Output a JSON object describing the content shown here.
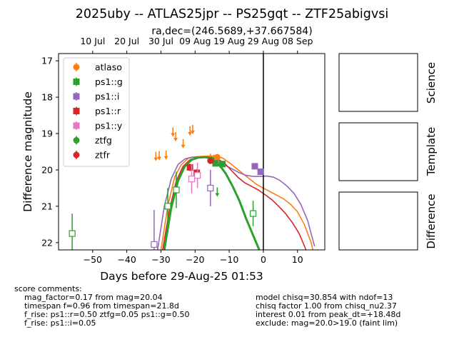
{
  "title": "2025uby -- ATLAS25jpr -- PS25gqt -- ZTF25abigvsi",
  "subtitle": "ra,dec=(246.5689,+37.667584)",
  "panels": [
    {
      "label": "Science"
    },
    {
      "label": "Template"
    },
    {
      "label": "Difference"
    }
  ],
  "comments_left": [
    "score comments:",
    "mag_factor=0.17 from mag=20.04",
    "timespan f=0.96 from timespan=21.8d",
    "f_rise: ps1::r=0.50 ztfg=0.05 ps1::g=0.50",
    "f_rise: ps1::i=0.05"
  ],
  "comments_right": [
    "model chisq=30.854 with ndof=13",
    "chisq factor 1.00 from chisq_nu2.37",
    "interest 0.01 from peak_dt=+18.48d",
    "exclude: mag=20.0>19.0 (faint lim)"
  ],
  "chart_data": {
    "type": "scatter",
    "xlabel": "Days before 29-Aug-25 01:53",
    "ylabel": "Difference magnitude",
    "xlim": [
      -60,
      18
    ],
    "ylim": [
      22.2,
      16.8
    ],
    "y_inverted": true,
    "x_ticks": [
      -50,
      -40,
      -30,
      -20,
      -10,
      0,
      10
    ],
    "y_ticks": [
      17,
      18,
      19,
      20,
      21,
      22
    ],
    "top_axis_ticks": [
      {
        "x": -50.0,
        "label": "10 Jul"
      },
      {
        "x": -40.0,
        "label": "20 Jul"
      },
      {
        "x": -30.0,
        "label": "30 Jul"
      },
      {
        "x": -20.0,
        "label": "09 Aug"
      },
      {
        "x": -10.0,
        "label": "19 Aug"
      },
      {
        "x": 0.0,
        "label": "29 Aug"
      },
      {
        "x": 10.0,
        "label": "08 Sep"
      }
    ],
    "vline_x": 0,
    "grid": false,
    "legend_position": "top-left",
    "series": [
      {
        "name": "atlaso",
        "color": "#ff7f0e",
        "marker": "circle",
        "points": [
          {
            "x": -13.5,
            "y": 19.65,
            "err": 0.06
          }
        ],
        "upper_limits": [
          {
            "x": -31.5,
            "y": 19.62
          },
          {
            "x": -30.5,
            "y": 19.6
          },
          {
            "x": -28.5,
            "y": 19.58
          },
          {
            "x": -26.5,
            "y": 18.95
          },
          {
            "x": -25.7,
            "y": 19.08
          },
          {
            "x": -23.5,
            "y": 19.27
          },
          {
            "x": -21.5,
            "y": 18.92
          },
          {
            "x": -20.7,
            "y": 18.88
          },
          {
            "x": -15.5,
            "y": 19.67
          },
          {
            "x": -14.5,
            "y": 19.7
          }
        ],
        "model": [
          {
            "x": -30,
            "y": 22.2
          },
          {
            "x": -28,
            "y": 21.0
          },
          {
            "x": -26,
            "y": 20.2
          },
          {
            "x": -24,
            "y": 19.85
          },
          {
            "x": -22,
            "y": 19.68
          },
          {
            "x": -20,
            "y": 19.64
          },
          {
            "x": -18,
            "y": 19.63
          },
          {
            "x": -16,
            "y": 19.62
          },
          {
            "x": -14,
            "y": 19.62
          },
          {
            "x": -12,
            "y": 19.67
          },
          {
            "x": -10,
            "y": 19.8
          },
          {
            "x": -8,
            "y": 19.95
          },
          {
            "x": -6,
            "y": 20.1
          },
          {
            "x": -4,
            "y": 20.25
          },
          {
            "x": -2,
            "y": 20.4
          },
          {
            "x": 0,
            "y": 20.5
          },
          {
            "x": 2,
            "y": 20.6
          },
          {
            "x": 4,
            "y": 20.7
          },
          {
            "x": 6,
            "y": 20.8
          },
          {
            "x": 8,
            "y": 20.95
          },
          {
            "x": 10,
            "y": 21.15
          },
          {
            "x": 12,
            "y": 21.5
          },
          {
            "x": 14,
            "y": 22.0
          },
          {
            "x": 14.5,
            "y": 22.2
          }
        ]
      },
      {
        "name": "ps1::g",
        "color": "#2ca02c",
        "marker": "square",
        "points": [
          {
            "x": -14.0,
            "y": 19.82,
            "err": 0.07
          },
          {
            "x": -12.0,
            "y": 19.84,
            "err": 0.07
          }
        ],
        "open_points": [
          {
            "x": -56.0,
            "y": 21.75,
            "err": 0.55
          },
          {
            "x": -28.0,
            "y": 21.0,
            "err": 0.5
          },
          {
            "x": -25.5,
            "y": 20.55,
            "err": 0.5
          },
          {
            "x": -3.0,
            "y": 21.2,
            "err": 0.35
          }
        ]
      },
      {
        "name": "ps1::i",
        "color": "#9467bd",
        "marker": "square",
        "points": [
          {
            "x": -2.5,
            "y": 19.9,
            "err": 0.08
          },
          {
            "x": -0.8,
            "y": 20.05,
            "err": 0.08
          }
        ],
        "open_points": [
          {
            "x": -32.0,
            "y": 22.05,
            "err": 0.95
          },
          {
            "x": -15.5,
            "y": 20.5,
            "err": 0.5
          }
        ],
        "model": [
          {
            "x": -31,
            "y": 22.2
          },
          {
            "x": -29,
            "y": 21.0
          },
          {
            "x": -27,
            "y": 20.25
          },
          {
            "x": -25,
            "y": 19.85
          },
          {
            "x": -23,
            "y": 19.7
          },
          {
            "x": -21,
            "y": 19.65
          },
          {
            "x": -19,
            "y": 19.65
          },
          {
            "x": -17,
            "y": 19.65
          },
          {
            "x": -15,
            "y": 19.7
          },
          {
            "x": -13,
            "y": 19.78
          },
          {
            "x": -11,
            "y": 19.88
          },
          {
            "x": -9,
            "y": 19.98
          },
          {
            "x": -7,
            "y": 20.08
          },
          {
            "x": -5,
            "y": 20.15
          },
          {
            "x": -3,
            "y": 20.18
          },
          {
            "x": -1,
            "y": 20.18
          },
          {
            "x": 1,
            "y": 20.17
          },
          {
            "x": 3,
            "y": 20.2
          },
          {
            "x": 5,
            "y": 20.3
          },
          {
            "x": 7,
            "y": 20.45
          },
          {
            "x": 9,
            "y": 20.65
          },
          {
            "x": 11,
            "y": 20.95
          },
          {
            "x": 13,
            "y": 21.4
          },
          {
            "x": 15,
            "y": 22.1
          }
        ]
      },
      {
        "name": "ps1::r",
        "color": "#d62728",
        "marker": "square",
        "points": [
          {
            "x": -21.5,
            "y": 19.93,
            "err": 0.1
          },
          {
            "x": -19.5,
            "y": 20.08,
            "err": 0.1
          }
        ],
        "model": [
          {
            "x": -29.5,
            "y": 22.2
          },
          {
            "x": -27.5,
            "y": 21.1
          },
          {
            "x": -25.5,
            "y": 20.3
          },
          {
            "x": -23.5,
            "y": 19.9
          },
          {
            "x": -21.5,
            "y": 19.72
          },
          {
            "x": -19.5,
            "y": 19.66
          },
          {
            "x": -17.5,
            "y": 19.65
          },
          {
            "x": -15.5,
            "y": 19.65
          },
          {
            "x": -13.5,
            "y": 19.7
          },
          {
            "x": -11.5,
            "y": 19.8
          },
          {
            "x": -9.5,
            "y": 20.0
          },
          {
            "x": -7.5,
            "y": 20.2
          },
          {
            "x": -5.5,
            "y": 20.35
          },
          {
            "x": -3.5,
            "y": 20.45
          },
          {
            "x": -1.5,
            "y": 20.55
          },
          {
            "x": 0.5,
            "y": 20.68
          },
          {
            "x": 2.5,
            "y": 20.82
          },
          {
            "x": 4.5,
            "y": 21.0
          },
          {
            "x": 6.5,
            "y": 21.2
          },
          {
            "x": 8.5,
            "y": 21.45
          },
          {
            "x": 10.5,
            "y": 21.75
          },
          {
            "x": 12.5,
            "y": 22.2
          }
        ]
      },
      {
        "name": "ps1::y",
        "color": "#e377c2",
        "marker": "square",
        "points": [],
        "open_points": [
          {
            "x": -21.0,
            "y": 20.25,
            "err": 0.4
          },
          {
            "x": -19.3,
            "y": 20.15,
            "err": 0.35
          }
        ]
      },
      {
        "name": "ztfg",
        "color": "#2ca02c",
        "marker": "circle",
        "points": [
          {
            "x": -15.2,
            "y": 19.72,
            "err": 0.05
          }
        ],
        "upper_limits": [
          {
            "x": -13.5,
            "y": 20.6
          }
        ],
        "model": [
          {
            "x": -29,
            "y": 22.2
          },
          {
            "x": -27,
            "y": 21.05
          },
          {
            "x": -25,
            "y": 20.3
          },
          {
            "x": -23,
            "y": 19.9
          },
          {
            "x": -21,
            "y": 19.72
          },
          {
            "x": -19,
            "y": 19.66
          },
          {
            "x": -17,
            "y": 19.65
          },
          {
            "x": -15,
            "y": 19.7
          },
          {
            "x": -13,
            "y": 19.85
          },
          {
            "x": -11,
            "y": 20.1
          },
          {
            "x": -9,
            "y": 20.45
          },
          {
            "x": -7,
            "y": 20.85
          },
          {
            "x": -5,
            "y": 21.35
          },
          {
            "x": -3,
            "y": 21.8
          },
          {
            "x": -1.2,
            "y": 22.2
          }
        ],
        "model_width": 3
      },
      {
        "name": "ztfr",
        "color": "#d62728",
        "marker": "circle",
        "points": [
          {
            "x": -15.5,
            "y": 19.75,
            "err": 0.05
          }
        ],
        "upper_limits": []
      }
    ]
  }
}
